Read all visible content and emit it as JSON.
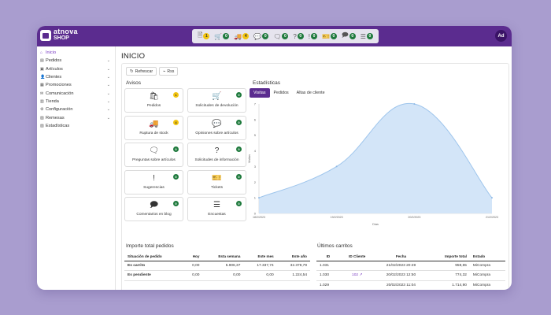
{
  "brand": {
    "line1": "atnova",
    "line2": "SHOP"
  },
  "topbar": {
    "shortcuts": [
      {
        "icon": "🗎",
        "name": "orders-shortcut",
        "count": "1",
        "color": "#f2c40f"
      },
      {
        "icon": "🛒",
        "name": "returns-shortcut",
        "count": "0",
        "color": "#1f7a3d"
      },
      {
        "icon": "🚚",
        "name": "stock-shortcut",
        "count": "4",
        "color": "#f2c40f"
      },
      {
        "icon": "💬",
        "name": "opinions-shortcut",
        "count": "0",
        "color": "#1f7a3d"
      },
      {
        "icon": "🗨",
        "name": "questions-shortcut",
        "count": "0",
        "color": "#1f7a3d"
      },
      {
        "icon": "?",
        "name": "info-shortcut",
        "count": "0",
        "color": "#1f7a3d"
      },
      {
        "icon": "!",
        "name": "suggestions-shortcut",
        "count": "0",
        "color": "#1f7a3d"
      },
      {
        "icon": "🎫",
        "name": "tickets-shortcut",
        "count": "0",
        "color": "#1f7a3d"
      },
      {
        "icon": "🗩",
        "name": "blog-comments-shortcut",
        "count": "0",
        "color": "#1f7a3d"
      },
      {
        "icon": "☰",
        "name": "surveys-shortcut",
        "count": "0",
        "color": "#1f7a3d"
      }
    ],
    "avatar": "Ad"
  },
  "sidebar": {
    "items": [
      {
        "label": "Inicio",
        "icon": "⌂",
        "chevron": false,
        "active": true
      },
      {
        "label": "Pedidos",
        "icon": "▤",
        "chevron": true,
        "active": false
      },
      {
        "label": "Artículos",
        "icon": "▣",
        "chevron": true,
        "active": false
      },
      {
        "label": "Clientes",
        "icon": "👤",
        "chevron": true,
        "active": false
      },
      {
        "label": "Promociones",
        "icon": "▦",
        "chevron": true,
        "active": false
      },
      {
        "label": "Comunicación",
        "icon": "✉",
        "chevron": true,
        "active": false
      },
      {
        "label": "Tienda",
        "icon": "▥",
        "chevron": true,
        "active": false
      },
      {
        "label": "Configuración",
        "icon": "⚙",
        "chevron": true,
        "active": false
      },
      {
        "label": "Remesas",
        "icon": "▧",
        "chevron": true,
        "active": false
      },
      {
        "label": "Estadísticas",
        "icon": "▨",
        "chevron": false,
        "active": false
      }
    ]
  },
  "page": {
    "title": "INICIO",
    "refresh_label": "Refrescar",
    "rss_label": "Rss",
    "avisos_title": "Avisos",
    "stats_title": "Estadísticas",
    "importe_title": "Importe total pedidos",
    "carritos_title": "Últimos carritos"
  },
  "avisos": [
    {
      "label": "Pedidos",
      "icon": "🛍",
      "name": "pedidos",
      "count": "1",
      "color": "yellow"
    },
    {
      "label": "Solicitudes de devolución",
      "icon": "🛒",
      "name": "devoluciones",
      "count": "0",
      "color": "green"
    },
    {
      "label": "Ruptura de stock",
      "icon": "🚚",
      "name": "ruptura-stock",
      "count": "4",
      "color": "yellow"
    },
    {
      "label": "Opiniones sobre artículos",
      "icon": "💬",
      "name": "opiniones",
      "count": "0",
      "color": "green"
    },
    {
      "label": "Preguntas sobre artículos",
      "icon": "🗨",
      "name": "preguntas",
      "count": "0",
      "color": "green"
    },
    {
      "label": "Solicitudes de información",
      "icon": "?",
      "name": "informacion",
      "count": "0",
      "color": "green"
    },
    {
      "label": "Sugerencias",
      "icon": "!",
      "name": "sugerencias",
      "count": "0",
      "color": "green"
    },
    {
      "label": "Tickets",
      "icon": "🎫",
      "name": "tickets",
      "count": "0",
      "color": "green"
    },
    {
      "label": "Comentarios en blog",
      "icon": "🗩",
      "name": "comentarios-blog",
      "count": "0",
      "color": "green"
    },
    {
      "label": "Encuestas",
      "icon": "☰",
      "name": "encuestas",
      "count": "0",
      "color": "green"
    }
  ],
  "tabs": [
    {
      "label": "Visitas",
      "active": true
    },
    {
      "label": "Pedidos",
      "active": false
    },
    {
      "label": "Altas de cliente",
      "active": false
    }
  ],
  "chart_data": {
    "type": "area",
    "x": [
      "18/2/2023",
      "19/2/2023",
      "20/2/2023",
      "21/2/2023"
    ],
    "values": [
      1,
      3,
      7,
      1
    ],
    "ylim": [
      0,
      7
    ],
    "yticks": [
      0,
      1,
      2,
      3,
      4,
      5,
      6,
      7
    ],
    "xlabel": "Días",
    "ylabel": "Visitas",
    "grid": false,
    "fill_color": "#d3e5f8",
    "line_color": "#9ec5ec"
  },
  "importe": {
    "headers": [
      "Situación de pedido",
      "Hoy",
      "Esta semana",
      "Este mes",
      "Este año"
    ],
    "rows": [
      [
        "Es carrito",
        "0,00",
        "5.906,37",
        "17.337,74",
        "32.378,79"
      ],
      [
        "Es pendiente",
        "0,00",
        "0,00",
        "0,00",
        "1.224,54"
      ]
    ]
  },
  "carritos": {
    "headers": [
      "ID",
      "ID Cliente",
      "Fecha",
      "Importe total",
      "Estado"
    ],
    "rows": [
      {
        "id": "1.031",
        "cliente": "",
        "fecha": "21/02/2023 20:49",
        "importe": "959,65",
        "estado": "MiCompra"
      },
      {
        "id": "1.030",
        "cliente": "102",
        "fecha": "20/02/2023 12:50",
        "importe": "774,32",
        "estado": "MiCompra"
      },
      {
        "id": "1.029",
        "cliente": "",
        "fecha": "20/02/2023 11:04",
        "importe": "1.714,90",
        "estado": "MiCompra"
      }
    ]
  }
}
